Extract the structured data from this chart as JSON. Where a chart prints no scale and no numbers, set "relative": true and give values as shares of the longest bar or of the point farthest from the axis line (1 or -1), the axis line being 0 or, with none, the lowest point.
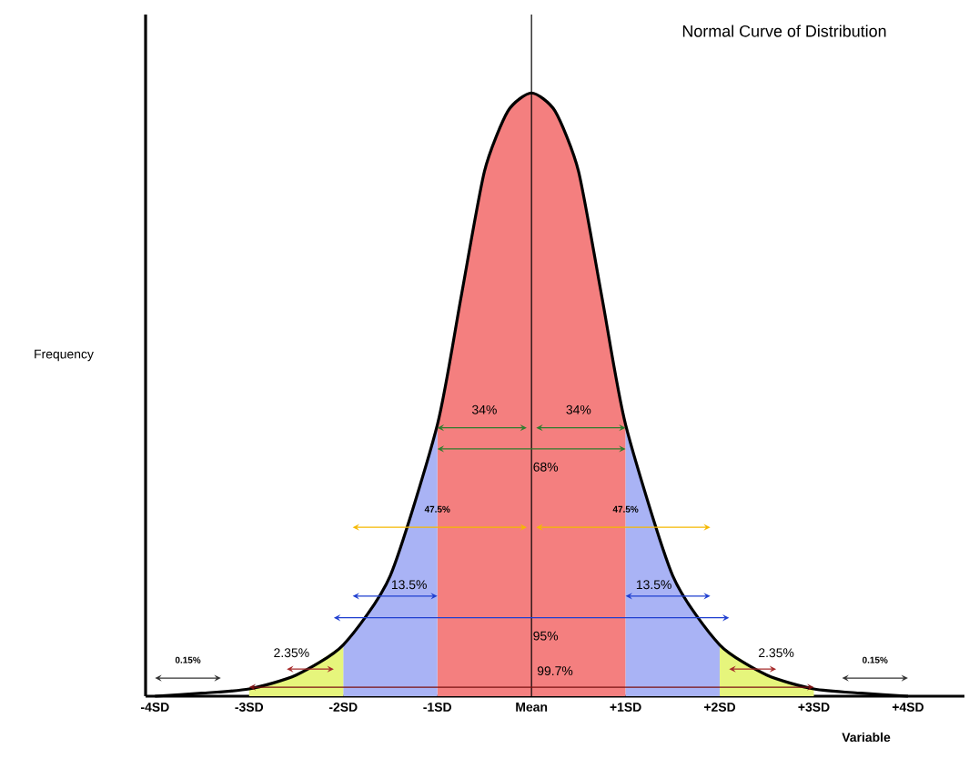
{
  "chart_data": {
    "type": "area",
    "title": "Normal Curve of Distribution",
    "xlabel": "Variable",
    "ylabel": "Frequency",
    "relative": true,
    "grid": false,
    "xlim": [
      -4.1,
      4.6
    ],
    "xticks": [
      {
        "value": -4,
        "label": "-4SD"
      },
      {
        "value": -3,
        "label": "-3SD"
      },
      {
        "value": -2,
        "label": "-2SD"
      },
      {
        "value": -1,
        "label": "-1SD"
      },
      {
        "value": 0,
        "label": "Mean"
      },
      {
        "value": 1,
        "label": "+1SD"
      },
      {
        "value": 2,
        "label": "+2SD"
      },
      {
        "value": 3,
        "label": "+3SD"
      },
      {
        "value": 4,
        "label": "+4SD"
      }
    ],
    "series": [
      {
        "color": "#f47f7f",
        "x": [
          -1,
          -0.75,
          -0.5,
          -0.25,
          0,
          0.25,
          0.5,
          0.75,
          1
        ],
        "values": [
          0.45,
          0.66,
          0.87,
          0.97,
          1,
          0.97,
          0.87,
          0.66,
          0.45
        ]
      },
      {
        "color": "#a9b3f5",
        "x": [
          -2,
          -1.5,
          -1
        ],
        "values": [
          0.085,
          0.2,
          0.45
        ]
      },
      {
        "color": "#a9b3f5",
        "x": [
          1,
          1.5,
          2
        ],
        "values": [
          0.45,
          0.2,
          0.085
        ]
      },
      {
        "color": "#e6f57c",
        "x": [
          -3,
          -2.5,
          -2
        ],
        "values": [
          0.012,
          0.035,
          0.085
        ]
      },
      {
        "color": "#e6f57c",
        "x": [
          2,
          2.5,
          3
        ],
        "values": [
          0.085,
          0.035,
          0.012
        ]
      },
      {
        "type": "line",
        "color": "#000000",
        "x": [
          -4,
          -3.5,
          -3,
          -2.5,
          -2,
          -1.5,
          -1,
          -0.75,
          -0.5,
          -0.25,
          0,
          0.25,
          0.5,
          0.75,
          1,
          1.5,
          2,
          2.5,
          3,
          3.5,
          4
        ],
        "values": [
          0,
          0.005,
          0.012,
          0.035,
          0.085,
          0.2,
          0.45,
          0.66,
          0.87,
          0.97,
          1,
          0.97,
          0.87,
          0.66,
          0.45,
          0.2,
          0.085,
          0.035,
          0.012,
          0.005,
          0
        ]
      }
    ],
    "ref_lines": [
      {
        "axis": "x",
        "value": 0,
        "color": "#000000"
      }
    ],
    "annotations": [
      "34%",
      "34%",
      "68%",
      "47.5%",
      "47.5%",
      "13.5%",
      "13.5%",
      "95%",
      "2.35%",
      "2.35%",
      "99.7%",
      "0.15%",
      "0.15%"
    ]
  }
}
